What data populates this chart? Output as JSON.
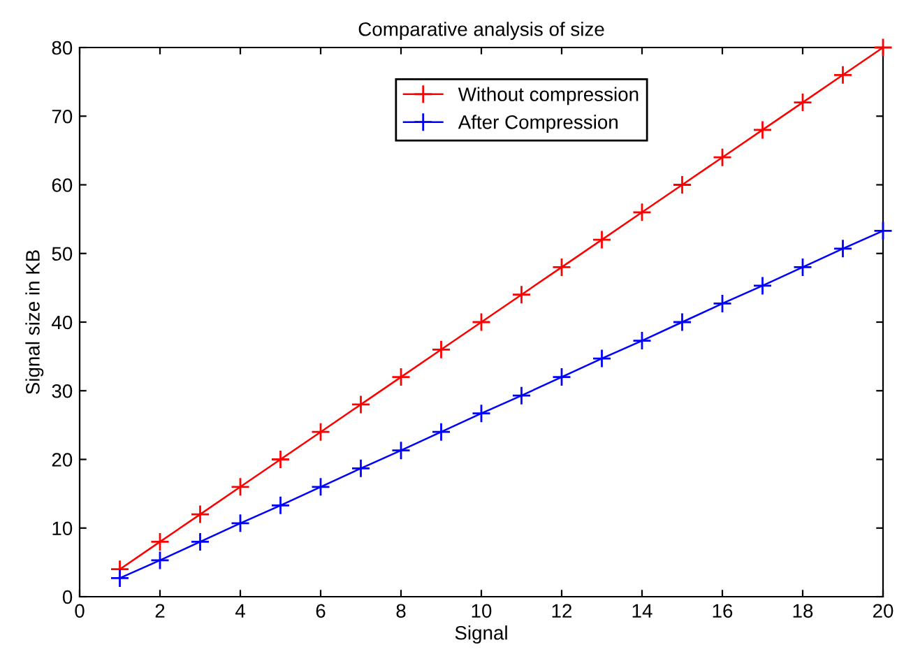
{
  "chart_data": {
    "type": "line",
    "title": "Comparative analysis of size",
    "xlabel": "Signal",
    "ylabel": "Signal size in KB",
    "x": [
      1,
      2,
      3,
      4,
      5,
      6,
      7,
      8,
      9,
      10,
      11,
      12,
      13,
      14,
      15,
      16,
      17,
      18,
      19,
      20
    ],
    "series": [
      {
        "name": "Without compression",
        "color": "#ff0000",
        "values": [
          4,
          8,
          12,
          16,
          20,
          24,
          28,
          32,
          36,
          40,
          44,
          48,
          52,
          56,
          60,
          64,
          68,
          72,
          76,
          80
        ]
      },
      {
        "name": "After Compression",
        "color": "#0000ff",
        "values": [
          2.7,
          5.3,
          8,
          10.7,
          13.3,
          16,
          18.7,
          21.3,
          24,
          26.7,
          29.3,
          32,
          34.7,
          37.3,
          40,
          42.7,
          45.3,
          48,
          50.7,
          53.3
        ]
      }
    ],
    "xlim": [
      0,
      20
    ],
    "xticks": [
      0,
      2,
      4,
      6,
      8,
      10,
      12,
      14,
      16,
      18,
      20
    ],
    "ylim": [
      0,
      80
    ],
    "yticks": [
      0,
      10,
      20,
      30,
      40,
      50,
      60,
      70,
      80
    ],
    "marker": "cross",
    "line_style": "solid",
    "grid": false,
    "legend": "top"
  }
}
